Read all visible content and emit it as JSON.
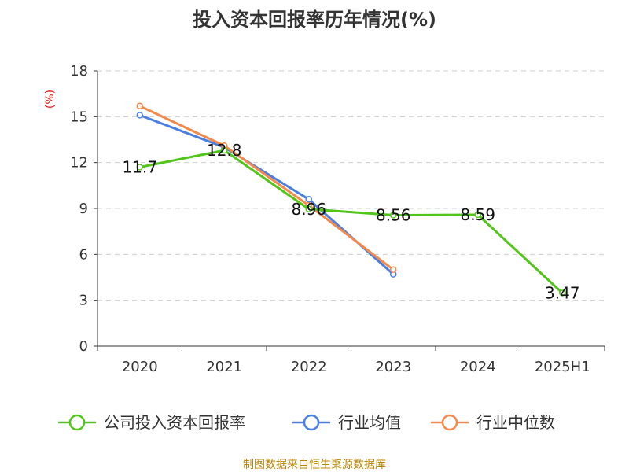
{
  "chart_data": {
    "type": "line",
    "title": "投入资本回报率历年情况(%)",
    "ylabel": "(%)",
    "categories": [
      "2020",
      "2021",
      "2022",
      "2023",
      "2024",
      "2025H1"
    ],
    "ylim": [
      0,
      18
    ],
    "yticks": [
      0,
      3,
      6,
      9,
      12,
      15,
      18
    ],
    "grid": true,
    "legend_position": "bottom",
    "series": [
      {
        "name": "公司投入资本回报率",
        "color": "#52c41a",
        "values": [
          11.7,
          12.8,
          8.96,
          8.56,
          8.59,
          3.47
        ],
        "labels": [
          "11.7",
          "12.8",
          "8.96",
          "8.56",
          "8.59",
          "3.47"
        ]
      },
      {
        "name": "行业均值",
        "color": "#4a7fe0",
        "values": [
          15.1,
          13.0,
          9.6,
          4.7,
          null,
          null
        ]
      },
      {
        "name": "行业中位数",
        "color": "#f4894d",
        "values": [
          15.7,
          13.1,
          9.2,
          5.0,
          null,
          null
        ]
      }
    ],
    "source": "制图数据来自恒生聚源数据库"
  }
}
